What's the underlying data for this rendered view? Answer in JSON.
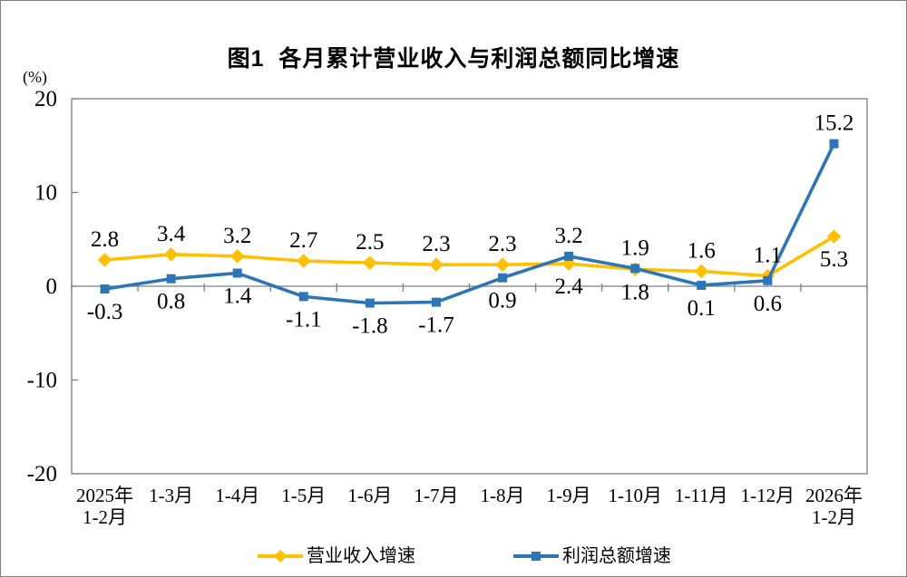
{
  "page": {
    "background": "#ffffff",
    "border_color": "#7f7f7f"
  },
  "chart_data": {
    "type": "line",
    "title": "图1  各月累计营业收入与利润总额同比增速",
    "unit_label": "(%)",
    "categories": [
      "2025年\n1-2月",
      "1-3月",
      "1-4月",
      "1-5月",
      "1-6月",
      "1-7月",
      "1-8月",
      "1-9月",
      "1-10月",
      "1-11月",
      "1-12月",
      "2026年\n1-2月"
    ],
    "series": [
      {
        "name": "营业收入增速",
        "color": "#FFC000",
        "marker": "diamond",
        "values": [
          2.8,
          3.4,
          3.2,
          2.7,
          2.5,
          2.3,
          2.3,
          2.4,
          1.8,
          1.6,
          1.1,
          5.3
        ]
      },
      {
        "name": "利润总额增速",
        "color": "#2E75B6",
        "marker": "square",
        "values": [
          -0.3,
          0.8,
          1.4,
          -1.1,
          -1.8,
          -1.7,
          0.9,
          3.2,
          1.9,
          0.1,
          0.6,
          15.2
        ]
      }
    ],
    "ylim": [
      -20,
      20
    ],
    "yticks": [
      20,
      10,
      0,
      -10,
      -20
    ],
    "grid": false,
    "axis_color": "#808080",
    "label_color": "#000000",
    "legend_position": "bottom"
  }
}
